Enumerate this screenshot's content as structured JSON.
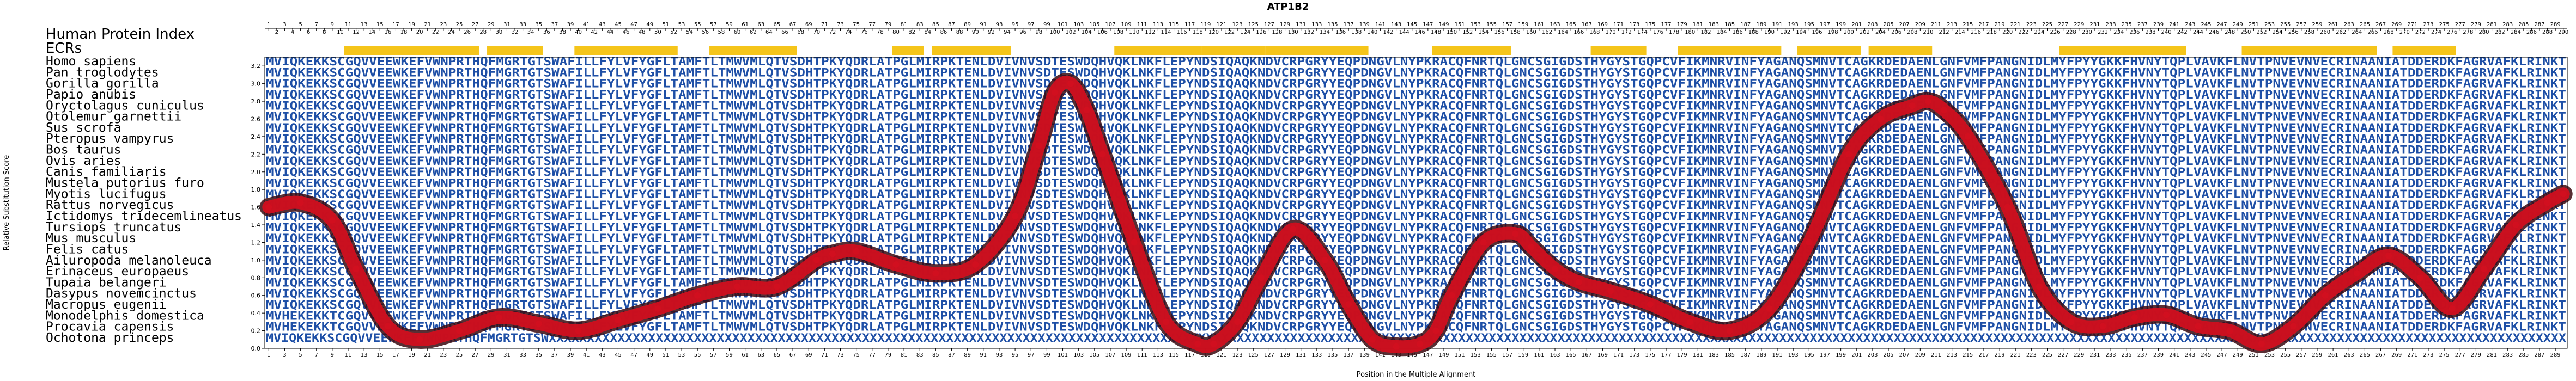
{
  "chart_data": {
    "type": "line",
    "title": "ATP1B2",
    "xlabel": "Position in the Multiple Alignment",
    "ylabel": "Relative Substitution Score",
    "xlim": [
      1,
      290
    ],
    "ylim": [
      0,
      3.3
    ],
    "yticks": [
      0.0,
      0.2,
      0.4,
      0.6,
      0.8,
      1.0,
      1.2,
      1.4,
      1.6,
      1.8,
      2.0,
      2.2,
      2.4,
      2.6,
      2.8,
      3.0,
      3.2
    ],
    "header_rows": [
      "Human Protein Index",
      "ECRs"
    ],
    "species": [
      "Homo sapiens",
      "Pan troglodytes",
      "Gorilla gorilla",
      "Papio anubis",
      "Oryctolagus cuniculus",
      "Otolemur garnettii",
      "Sus scrofa",
      "Pteropus vampyrus",
      "Bos taurus",
      "Ovis aries",
      "Canis familiaris",
      "Mustela putorius furo",
      "Myotis lucifugus",
      "Rattus norvegicus",
      "Ictidomys tridecemlineatus",
      "Tursiops truncatus",
      "Mus musculus",
      "Felis catus",
      "Ailuropoda melanoleuca",
      "Erinaceus europaeus",
      "Tupaia belangeri",
      "Dasypus novemcinctus",
      "Macropus eugenii",
      "Monodelphis domestica",
      "Procavia capensis",
      "Ochotona princeps"
    ],
    "sequences": [
      "MVIQKEKKSCGQVVEEWKEFVWNPRTHQFMGRTGTSWAFILLFYLVFYGFLTAMFTLTMWVMLQTVSDHTPKYQDRLATPGLMIRPKTENLDVIVNVSDTESWDQHVQKLNKFLEPYNDSIQAQKNDVCRPGRYYEQPDNGVLNYPKRACQFNRTQLGNCSGIGDSTHYGYSTGQPCVFIKMNRVINFYAGANQSMNVTCAGKRDEDAENLGNFVMFPANGNIDLMYFPYYGKKFHVNYTQPLVAVKFLNVTPNVEVNVECRINAANIATDDERDKFAGRVAFKLRINKT",
      "MVIQKEKKSCGQVVEEWKEFVWNPRTHQFMGRTGTSWAFILLFYLVFYGFLTAMFTLTMWVMLQTVSDHTPKYQDRLATPGLMIRPKTENLDVIVNVSDTESWDQHVQKLNKFLEPYNDSIQAQKNDVCRPGRYYEQPDNGVLNYPKRACQFNRTQLGNCSGIGDSTHYGYSTGQPCVFIKMNRVINFYAGANQSMNVTCAGKRDEDAENLGNFVMFPANGNIDLMYFPYYGKKFHVNYTQPLVAVKFLNVTPNVEVNVECRINAANIATDDERDKFAGRVAFKLRINKT",
      "MVIQKEKKSCGQVVEEWKEFVWNPRTHQFMGRTGTSWAFILLFYLVFYGFLTAMFTLTMWVMLQTVSDHTPKYQDRLATPGLMIRPKTENLDVIVNVSDTESWDQHVQKLNKFLEPYNDSIQAQKNDVCRPGRYYEQPDNGVLNYPKRACQFNRTQLGNCSGIGDSTHYGYSTGQPCVFIKMNRVINFYAGANQSMNVTCAGKRDEDAENLGNFVMFPANGNIDLMYFPYYGKKFHVNYTQPLVAVKFLNVTPNVEVNVECRINAANIATDDERDKFAGRVAFKLRINKT",
      "MVIQKEKKSCGQVVEEWKEFVWNPRTHQFMGRTGTSWAFILLFYLVFYGFLTAMFTLTMWVMLQTVSDHTPKYQDRLATPGLMIRPKTENLDVIVNVSDTESWDQHVQKLNKFLEPYNDSIQAQKNDVCRPGRYYEQPDNGVLNYPKRACQFNRTQLGNCSGIGDSTHYGYSTGQPCVFIKMNRVINFYAGANQSMNVTCAGKRDEDAENLGNFVMFPANGNIDLMYFPYYGKKFHVNYTQPLVAVKFLNVTPNVEVNVECRINAANIATDDERDKFAGRVAFKLRINKT",
      "MVIQKEKKSCGQVVEEWKEFVWNPRTHQFMGRTGTSWAFILLFYLVFYGFLTAMFTLTMWVMLQTVSDHTPKYQDRLATPGLMIRPKTENLDVIVNVSDTESWDQHVQKLNKFLEPYNDSIQAQKNDVCRPGRYYEQPDNGVLNYPKRACQFNRTQLGNCSGIGDSTHYGYSTGQPCVFIKMNRVINFYAGANQSMNVTCAGKRDEDAENLGNFVMFPANGNIDLMYFPYYGKKFHVNYTQPLVAVKFLNVTPNVEVNVECRINAANIATDDERDKFAGRVAFKLRINKT",
      "MVIQKEKKSCGQVVEEWKEFVWNPRTHQFMGRTGTSWAFILLFYLVFYGFLTAMFTLTMWVMLQTVSDHTPKYQDRLATPGLMIRPKTENLDVIVNVSDTESWDQHVQKLNKFLEPYNDSIQAQKNDVCRPGRYYEQPDNGVLNYPKRACQFNRTQLGNCSGIGDSTHYGYSTGQPCVFIKMNRVINFYAGANQSMNVTCAGKRDEDAENLGNFVMFPANGNIDLMYFPYYGKKFHVNYTQPLVAVKFLNVTPNVEVNVECRINAANIATDDERDKFAGRVAFKLRINKT",
      "MVIQKEKKSCGQVVEEWKEFVWNPRTHQFMGRTGTSWAFILLFYLVFYGFLTAMFTLTMWVMLQTVSDHTPKYQDRLATPGLMIRPKTENLDVIVNVSDTESWDQHVQKLNKFLEPYNDSIQAQKNDVCRPGRYYEQPDNGVLNYPKRACQFNRTQLGNCSGIGDSTHYGYSTGQPCVFIKMNRVINFYAGANQSMNVTCAGKRDEDAENLGNFVMFPANGNIDLMYFPYYGKKFHVNYTQPLVAVKFLNVTPNVEVNVECRINAANIATDDERDKFAGRVAFKLRINKT",
      "MVIQKEKKSCGQVVEEWKEFVWNPRTHQFMGRTGTSWAFILLFYLVFYGFLTAMFTLTMWVMLQTVSDHTPKYQDRLATPGLMIRPKTENLDVIVNVSDTESWDQHVQKLNKFLEPYNDSIQAQKNDVCRPGRYYEQPDNGVLNYPKRACQFNRTQLGNCSGIGDSTHYGYSTGQPCVFIKMNRVINFYAGANQSMNVTCAGKRDEDAENLGNFVMFPANGNIDLMYFPYYGKKFHVNYTQPLVAVKFLNVTPNVEVNVECRINAANIATDDERDKFAGRVAFKLRINKT",
      "MVIQKEKKSCGQVVEEWKEFVWNPRTHQFMGRTGTSWAFILLFYLVFYGFLTAMFTLTMWVMLQTVSDHTPKYQDRLATPGLMIRPKTENLDVIVNVSDTESWDQHVQKLNKFLEPYNDSIQAQKNDVCRPGRYYEQPDNGVLNYPKRACQFNRTQLGNCSGIGDSTHYGYSTGQPCVFIKMNRVINFYAGANQSMNVTCAGKRDEDAENLGNFVMFPANGNIDLMYFPYYGKKFHVNYTQPLVAVKFLNVTPNVEVNVECRINAANIATDDERDKFAGRVAFKLRINKT",
      "MVIQKEKKSCGQVVEEWKEFVWNPRTHQFMGRTGTSWAFILLFYLVFYGFLTAMFTLTMWVMLQTVSDHTPKYQDRLATPGLMIRPKTENLDVIVNVSDTESWDQHVQKLNKFLEPYNDSIQAQKNDVCRPGRYYEQPDNGVLNYPKRACQFNRTQLGNCSGIGDSTHYGYSTGQPCVFIKMNRVINFYAGANQSMNVTCAGKRDEDAENLGNFVMFPANGNIDLMYFPYYGKKFHVNYTQPLVAVKFLNVTPNVEVNVECRINAANIATDDERDKFAGRVAFKLRINKT",
      "MVIQKEKKSCGQVVEEWKEFVWNPRTHQFMGRTGTSWAFILLFYLVFYGFLTAMFTLTMWVMLQTVSDHTPKYQDRLATPGLMIRPKTENLDVIVNVSDTESWDQHVQKLNKFLEPYNDSIQAQKNDVCRPGRYYEQPDNGVLNYPKRACQFNRTQLGNCSGIGDSTHYGYSTGQPCVFIKMNRVINFYAGANQSMNVTCAGKRDEDAENLGNFVMFPANGNIDLMYFPYYGKKFHVNYTQPLVAVKFLNVTPNVEVNVECRINAANIATDDERDKFAGRVAFKLRINKT",
      "MVIQKEKKSCGQVVEEWKEFVWNPRTHQFMGRTGTSWAFILLFYLVFYGFLTAMFTLTMWVMLQTVSDHTPKYQDRLATPGLMIRPKTENLDVIVNVSDTESWDQHVQKLNKFLEPYNDSIQAQKNDVCRPGRYYEQPDNGVLNYPKRACQFNRTQLGNCSGIGDSTHYGYSTGQPCVFIKMNRVINFYAGANQSMNVTCAGKRDEDAENLGNFVMFPANGNIDLMYFPYYGKKFHVNYTQPLVAVKFLNVTPNVEVNVECRINAANIATDDERDKFAGRVAFKLRINKT",
      "MVIQKEKKSCGQVVEEWKEFVWNPRTHQFMGRTGTSWAFILLFYLVFYGFLTAMFTLTMWVMLQTVSDHTPKYQDRLATPGLMIRPKTENLDVIVNVSDTESWDQHVQKLNKFLEPYNDSIQAQKNDVCRPGRYYEQPDNGVLNYPKRACQFNRTQLGNCSGIGDSTHYGYSTGQPCVFIKMNRVINFYAGANQSMNVTCAGKRDEDAENLGNFVMFPANGNIDLMYFPYYGKKFHVNYTQPLVAVKFLNVTPNVEVNVECRINAANIATDDERDKFAGRVAFKLRINKT",
      "MVIQKEKKSCGQVVEEWKEFVWNPRTHQFMGRTGTSWAFILLFYLVFYGFLTAMFTLTMWVMLQTVSDHTPKYQDRLATPGLMIRPKTENLDVIVNVSDTESWDQHVQKLNKFLEPYNDSIQAQKNDVCRPGRYYEQPDNGVLNYPKRACQFNRTQLGNCSGIGDSTHYGYSTGQPCVFIKMNRVINFYAGANQSMNVTCAGKRDEDAENLGNFVMFPANGNIDLMYFPYYGKKFHVNYTQPLVAVKFLNVTPNVEVNVECRINAANIATDDERDKFAGRVAFKLRINKT",
      "MVIQKEKKSCGQVVEEWKEFVWNPRTHQFMGRTGTSWAFILLFYLVFYGFLTAMFTLTMWVMLQTVSDHTPKYQDRLATPGLMIRPKTENLDVIVNVSDTESWDQHVQKLNKFLEPYNDSIQAQKNDVCRPGRYYEQPDNGVLNYPKRACQFNRTQLGNCSGIGDSTHYGYSTGQPCVFIKMNRVINFYAGANQSMNVTCAGKRDEDAENLGNFVMFPANGNIDLMYFPYYGKKFHVNYTQPLVAVKFLNVTPNVEVNVECRINAANIATDDERDKFAGRVAFKLRINKT",
      "MVIQKEKKSCGQVVEEWKEFVWNPRTHQFMGRTGTSWAFILLFYLVFYGFLTAMFTLTMWVMLQTVSDHTPKYQDRLATPGLMIRPKTENLDVIVNVSDTESWDQHVQKLNKFLEPYNDSIQAQKNDVCRPGRYYEQPDNGVLNYPKRACQFNRTQLGNCSGIGDSTHYGYSTGQPCVFIKMNRVINFYAGANQSMNVTCAGKRDEDAENLGNFVMFPANGNIDLMYFPYYGKKFHVNYTQPLVAVKFLNVTPNVEVNVECRINAANIATDDERDKFAGRVAFKLRINKT",
      "MVIQKEKKSCGQVVEEWKEFVWNPRTHQFMGRTGTSWAFILLFYLVFYGFLTAMFTLTMWVMLQTVSDHTPKYQDRLATPGLMIRPKTENLDVIVNVSDTESWDQHVQKLNKFLEPYNDSIQAQKNDVCRPGRYYEQPDNGVLNYPKRACQFNRTQLGNCSGIGDSTHYGYSTGQPCVFIKMNRVINFYAGANQSMNVTCAGKRDEDAENLGNFVMFPANGNIDLMYFPYYGKKFHVNYTQPLVAVKFLNVTPNVEVNVECRINAANIATDDERDKFAGRVAFKLRINKT",
      "MVIQKEKKSCGQVVEEWKEFVWNPRTHQFMGRTGTSWAFILLFYLVFYGFLTAMFTLTMWVMLQTVSDHTPKYQDRLATPGLMIRPKTENLDVIVNVSDTESWDQHVQKLNKFLEPYNDSIQAQKNDVCRPGRYYEQPDNGVLNYPKRACQFNRTQLGNCSGIGDSTHYGYSTGQPCVFIKMNRVINFYAGANQSMNVTCAGKRDEDAENLGNFVMFPANGNIDLMYFPYYGKKFHVNYTQPLVAVKFLNVTPNVEVNVECRINAANIATDDERDKFAGRVAFKLRINKT",
      "MVIQKEKKSCGQVVEEWKEFVWNPRTHQFMGRTGTSWAFILLFYLVFYGFLTAMFTLTMWVMLQTVSDHTPKYQDRLATPGLMIRPKTENLDVIVNVSDTESWDQHVQKLNKFLEPYNDSIQAQKNDVCRPGRYYEQPDNGVLNYPKRACQFNRTQLGNCSGIGDSTHYGYSTGQPCVFIKMNRVINFYAGANQSMNVTCAGKRDEDAENLGNFVMFPANGNIDLMYFPYYGKKFHVNYTQPLVAVKFLNVTPNVEVNVECRINAANIATDDERDKFAGRVAFKLRINKT",
      "MVIQKEKKSCGQVVEEWKEFVWNPRTHQFMGRTGTSWAFILLFYLVFYGFLTAMFTLTMWVMLQTVSDHTPKYQDRLATPGLMIRPKTENLDVIVNVSDTESWDQHVQKLNKFLEPYNDSIQAQKNDVCRPGRYYEQPDNGVLNYPKRACQFNRTQLGNCSGIGDSTHYGYSTGQPCVFIKMNRVINFYAGANQSMNVTCAGKRDEDAENLGNFVMFPANGNIDLMYFPYYGKKFHVNYTQPLVAVKFLNVTPNVEVNVECRINAANIATDDERDKFAGRVAFKLRINKT",
      "MVIQKEKKSCGQVVEEWKEFVWNPRTHQFMGRTGTSWAFILLFYLVFYGFLTAMFTLTMWVMLQTVSDHTPKYQDRLATPGLMIRPKTENLDVIVNVSDTESWDQHVQKLNKFLEPYNDSIQAQKNDVCRPGRYYEQPDNGVLNYPKRACQFNRTQLGNCSGIGDSTHYGYSTGQPCVFIKMNRVINFYAGANQSMNVTCAGKRDEDAENLGNFVMFPANGNIDLMYFPYYGKKFHVNYTQPLVAVKFLNVTPNVEVNVECRINAANIATDDERDKFAGRVAFKLRINKT",
      "MVIQKEKKSCGQVVEEWKEFVWNPRTHQFMGRTGTSWAFILLFYLVFYGFLTAMFTLTMWVMLQTVSDHTPKYQDRLATPGLMIRPKTENLDVIVNVSDTESWDQHVQKLNKFLEPYNDSIQAQKNDVCRPGRYYEQPDNGVLNYPKRACQFNRTQLGNCSGIGDSTHYGYSTGQPCVFIKMNRVINFYAGANQSMNVTCAGKRDEDAENLGNFVMFPANGNIDLMYFPYYGKKFHVNYTQPLVAVKFLNVTPNVEVNVECRINAANIATDDERDKFAGRVAFKLRINKT",
      "MVIQKEKKSCGQVVEEWKEFVWNPRTHQFMGRTGTSWAFILLFYLVFYGFLTAMFTLTMWVMLQTVSDHTPKYQDRLATPGLMIRPKTENLDVIVNVSDTESWDQHVQKLNKFLEPYNDSIQAQKNDVCRPGRYYEQPDNGVLNYPKRACQFNRTQLGNCSGIGDSTHYGYSTGQPCVFIKMNRVINFYAGANQSMNVTCAGKRDEDAENLGNFVMFPANGNIDLMYFPYYGKKFHVNYTQPLVAVKFLNVTPNVEVNVECRINAANIATDDERDKFAGRVAFKLRINKT",
      "MVHEKEKKTCGQVVEEWKEFVWNPRTHQFMGRTGTSWAFILLFYLVFYGFLTAMFTLTMWVMLQTVSDHTPKYQDRLATPGLMIRPKTENLDVIVNVSDTESWDQHVQKLNKFLEPYNDSIQAQKNDVCRPGRYYEQPDNGVLNYPKRACQFNRTQLGNCSGIGDSTHYGYSTGQPCVFIKMNRVINFYAGANQSMNVTCAGKRDEDAENLGNFVMFPANGNIDLMYFPYYGKKFHVNYTQPLVAVKFLNVTPNVEVNVECRINAANIATDDERDKFAGRVAFKLRINKT",
      "MVHEKEKKTCGQVVEEWKEFVWNPRTHQFMGRTGTSWAFILLFYLVFYGFLTAMFTLTMWVMLQTVSDHTPKYQDRLATPGLMIRPKTENLDVIVNVSDTESWDQHVQKLNKFLEPYNDSIQAQKNDVCRPGRYYEQPDNGVLNYPKRACQFNRTQLGNCSGIGDSTHYGYSTGQPCVFIKMNRVINFYAGANQSMNVTCAGKRDEDAENLGNFVMFPANGNIDLMYFPYYGKKFHVNYTQPLVAVKFLNVTPNVEVNVECRINAANIATDDERDKFAGRVAFKLRINKT",
      "MVIQKEKKSCGQVVEEWKEFVWNPRTHQFMGRTGTSWXXXXXXXXXXXXXXXXXXXXXXXXXXXXXXXXXXXXXXXXXXXXXXXXXXXXXXXXXXXXXXXXXXXXXXXXXXXXXXXXXXXXXXXXXXXXXXXXXXXXXXXXXXXXXXXXXXXXXXXXXXXXXXXXXXXXXXXXXXXXXXXXXXXXXXXXXXXXXXXXXXXXXXXXXXXXXXXXXXXXXXXXXXXXXXXXXXXXXXXXXXXXXXXXXXXXXXXXXXXXXXXXXXXXXXXXXXXXXXXXXXXXXXXXXXXXXXXXXXXXXXXX"
    ],
    "ecr_ranges": [
      [
        11,
        27
      ],
      [
        29,
        35
      ],
      [
        40,
        52
      ],
      [
        57,
        67
      ],
      [
        80,
        83
      ],
      [
        85,
        94
      ],
      [
        108,
        113
      ],
      [
        114,
        118
      ],
      [
        119,
        126
      ],
      [
        127,
        132
      ],
      [
        133,
        139
      ],
      [
        148,
        157
      ],
      [
        168,
        174
      ],
      [
        179,
        191
      ],
      [
        194,
        201
      ],
      [
        203,
        210
      ],
      [
        227,
        242
      ],
      [
        250,
        266
      ],
      [
        269,
        276
      ]
    ],
    "series": [
      {
        "name": "",
        "x": [
          1,
          5,
          9,
          12,
          16,
          20,
          25,
          30,
          35,
          40,
          45,
          50,
          55,
          60,
          65,
          70,
          72,
          75,
          80,
          85,
          90,
          95,
          98,
          100,
          102,
          104,
          106,
          110,
          114,
          118,
          120,
          123,
          126,
          130,
          134,
          137,
          140,
          143,
          146,
          148,
          150,
          154,
          158,
          160,
          163,
          166,
          170,
          175,
          180,
          185,
          190,
          195,
          200,
          204,
          208,
          210,
          212,
          215,
          220,
          224,
          228,
          232,
          236,
          240,
          244,
          248,
          252,
          256,
          260,
          264,
          268,
          272,
          276,
          280,
          284,
          288,
          290
        ],
        "y": [
          1.6,
          1.65,
          1.45,
          0.9,
          0.25,
          0.1,
          0.2,
          0.35,
          0.28,
          0.2,
          0.32,
          0.45,
          0.6,
          0.7,
          0.7,
          1.0,
          1.07,
          1.1,
          0.95,
          0.85,
          0.95,
          1.5,
          2.3,
          2.9,
          3.0,
          2.7,
          2.2,
          1.2,
          0.3,
          0.05,
          0.05,
          0.3,
          0.8,
          1.35,
          1.0,
          0.5,
          0.1,
          0.02,
          0.05,
          0.2,
          0.6,
          1.2,
          1.3,
          1.15,
          0.9,
          0.75,
          0.65,
          0.5,
          0.3,
          0.2,
          0.45,
          1.2,
          2.2,
          2.6,
          2.75,
          2.8,
          2.7,
          2.4,
          1.6,
          0.7,
          0.3,
          0.25,
          0.35,
          0.38,
          0.25,
          0.2,
          0.05,
          0.25,
          0.6,
          0.85,
          1.05,
          0.8,
          0.45,
          0.9,
          1.4,
          1.65,
          1.75
        ]
      }
    ],
    "grid": false,
    "legend": "none",
    "colors": {
      "curve": "#d10f1f",
      "curve_shadow": "#3a0a10",
      "ecr": "#f5c51a",
      "sequence": "#1e4fa6",
      "axis": "#000000"
    }
  }
}
